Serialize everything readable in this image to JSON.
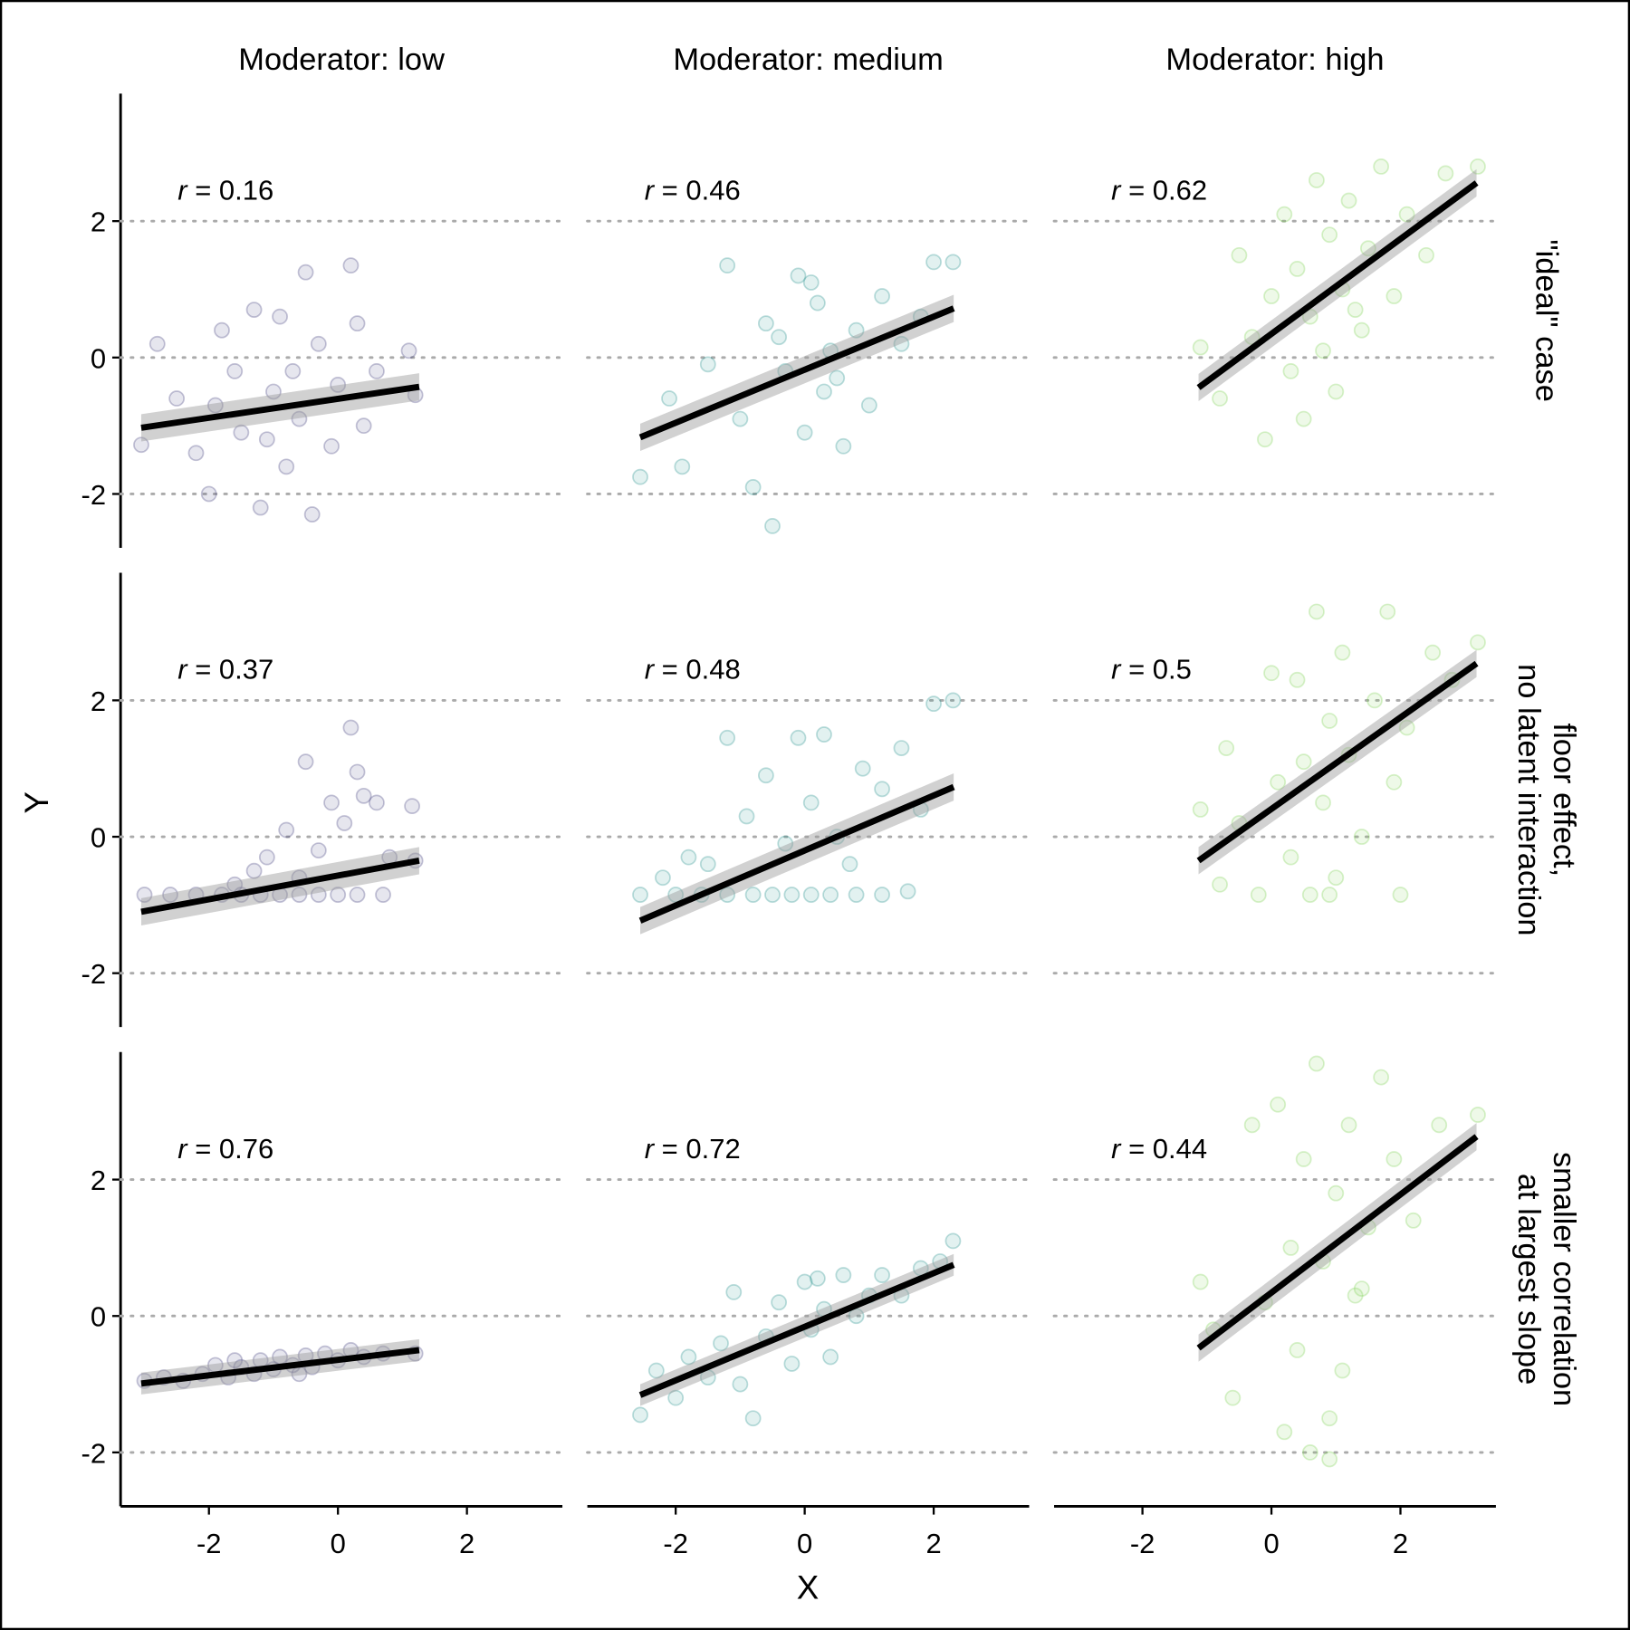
{
  "chart_data": {
    "type": "scatter",
    "columns": [
      "Moderator: low",
      "Moderator: medium",
      "Moderator: high"
    ],
    "rows": [
      [
        "\"ideal\" case"
      ],
      [
        "floor effect,",
        "no latent interaction"
      ],
      [
        "smaller correlation",
        "at largest slope"
      ]
    ],
    "colors": [
      "#3f3a7a",
      "#21908c",
      "#7ad151"
    ],
    "xlabel": "X",
    "ylabel": "Y",
    "xlim": [
      -3.37,
      3.48
    ],
    "ylim": [
      -2.79,
      3.87
    ],
    "xticks": [
      -2,
      0,
      2
    ],
    "yticks": [
      -2,
      0,
      2
    ],
    "grid": true,
    "panels": [
      {
        "annotation": "r = 0.16",
        "fit_x": [
          -3.05,
          1.26
        ],
        "fit_y": [
          -1.03,
          -0.43
        ],
        "band_lower": [
          -1.23,
          -0.63
        ],
        "band_upper": [
          -0.83,
          -0.23
        ],
        "points": [
          [
            -3.05,
            -1.28
          ],
          [
            -2.8,
            0.2
          ],
          [
            -2.5,
            -0.6
          ],
          [
            -2.2,
            -1.4
          ],
          [
            -2.0,
            -2.0
          ],
          [
            -1.8,
            0.4
          ],
          [
            -1.6,
            -0.2
          ],
          [
            -1.5,
            -1.1
          ],
          [
            -1.3,
            0.7
          ],
          [
            -1.2,
            -2.2
          ],
          [
            -1.0,
            -0.5
          ],
          [
            -0.9,
            0.6
          ],
          [
            -0.8,
            -1.6
          ],
          [
            -0.6,
            -0.9
          ],
          [
            -0.5,
            1.25
          ],
          [
            -0.4,
            -2.3
          ],
          [
            -0.3,
            0.2
          ],
          [
            -0.1,
            -1.3
          ],
          [
            0.0,
            -0.4
          ],
          [
            0.2,
            1.35
          ],
          [
            0.3,
            0.5
          ],
          [
            0.4,
            -1.0
          ],
          [
            0.6,
            -0.2
          ],
          [
            1.1,
            0.1
          ],
          [
            1.2,
            -0.55
          ],
          [
            -1.1,
            -1.2
          ],
          [
            -0.7,
            -0.2
          ],
          [
            -1.9,
            -0.7
          ]
        ]
      },
      {
        "annotation": "r = 0.46",
        "fit_x": [
          -2.55,
          2.31
        ],
        "fit_y": [
          -1.17,
          0.72
        ],
        "band_lower": [
          -1.37,
          0.52
        ],
        "band_upper": [
          -0.97,
          0.92
        ],
        "points": [
          [
            -2.55,
            -1.75
          ],
          [
            -2.1,
            -0.6
          ],
          [
            -1.9,
            -1.6
          ],
          [
            -1.5,
            -0.1
          ],
          [
            -1.2,
            1.35
          ],
          [
            -1.0,
            -0.9
          ],
          [
            -0.8,
            -1.9
          ],
          [
            -0.6,
            0.5
          ],
          [
            -0.5,
            -2.47
          ],
          [
            -0.3,
            -0.2
          ],
          [
            -0.1,
            1.2
          ],
          [
            0.0,
            -1.1
          ],
          [
            0.2,
            0.8
          ],
          [
            0.3,
            -0.5
          ],
          [
            0.4,
            0.1
          ],
          [
            0.6,
            -1.3
          ],
          [
            0.8,
            0.4
          ],
          [
            1.0,
            -0.7
          ],
          [
            1.2,
            0.9
          ],
          [
            1.5,
            0.2
          ],
          [
            1.8,
            0.6
          ],
          [
            2.0,
            1.4
          ],
          [
            2.3,
            1.4
          ],
          [
            0.1,
            1.1
          ],
          [
            -0.4,
            0.3
          ],
          [
            0.5,
            -0.3
          ]
        ]
      },
      {
        "annotation": "r = 0.62",
        "fit_x": [
          -1.13,
          3.18
        ],
        "fit_y": [
          -0.44,
          2.56
        ],
        "band_lower": [
          -0.64,
          2.36
        ],
        "band_upper": [
          -0.24,
          2.76
        ],
        "points": [
          [
            -1.1,
            0.15
          ],
          [
            -0.8,
            -0.6
          ],
          [
            -0.5,
            1.5
          ],
          [
            -0.3,
            0.3
          ],
          [
            -0.1,
            -1.2
          ],
          [
            0.0,
            0.9
          ],
          [
            0.2,
            2.1
          ],
          [
            0.3,
            -0.2
          ],
          [
            0.4,
            1.3
          ],
          [
            0.5,
            -0.9
          ],
          [
            0.6,
            0.6
          ],
          [
            0.7,
            2.6
          ],
          [
            0.8,
            0.1
          ],
          [
            0.9,
            1.8
          ],
          [
            1.0,
            -0.5
          ],
          [
            1.1,
            1.0
          ],
          [
            1.2,
            2.3
          ],
          [
            1.4,
            0.4
          ],
          [
            1.5,
            1.6
          ],
          [
            1.7,
            2.8
          ],
          [
            1.9,
            0.9
          ],
          [
            2.1,
            2.1
          ],
          [
            2.4,
            1.5
          ],
          [
            2.7,
            2.7
          ],
          [
            3.2,
            2.8
          ],
          [
            1.3,
            0.7
          ]
        ]
      },
      {
        "annotation": "r = 0.37",
        "fit_x": [
          -3.05,
          1.26
        ],
        "fit_y": [
          -1.1,
          -0.35
        ],
        "band_lower": [
          -1.3,
          -0.55
        ],
        "band_upper": [
          -0.9,
          -0.15
        ],
        "points": [
          [
            -3.0,
            -0.85
          ],
          [
            -2.6,
            -0.85
          ],
          [
            -2.2,
            -0.85
          ],
          [
            -1.8,
            -0.85
          ],
          [
            -1.5,
            -0.85
          ],
          [
            -1.2,
            -0.85
          ],
          [
            -0.9,
            -0.85
          ],
          [
            -0.6,
            -0.85
          ],
          [
            -0.3,
            -0.85
          ],
          [
            0.0,
            -0.85
          ],
          [
            0.3,
            -0.85
          ],
          [
            0.7,
            -0.85
          ],
          [
            -1.6,
            -0.7
          ],
          [
            -1.3,
            -0.5
          ],
          [
            -1.1,
            -0.3
          ],
          [
            -0.8,
            0.1
          ],
          [
            -0.6,
            -0.6
          ],
          [
            -0.5,
            1.1
          ],
          [
            -0.3,
            -0.2
          ],
          [
            -0.1,
            0.5
          ],
          [
            0.1,
            0.2
          ],
          [
            0.2,
            1.6
          ],
          [
            0.3,
            0.95
          ],
          [
            0.4,
            0.6
          ],
          [
            0.6,
            0.5
          ],
          [
            0.8,
            -0.3
          ],
          [
            1.15,
            0.45
          ],
          [
            1.2,
            -0.35
          ]
        ]
      },
      {
        "annotation": "r = 0.48",
        "fit_x": [
          -2.55,
          2.31
        ],
        "fit_y": [
          -1.23,
          0.73
        ],
        "band_lower": [
          -1.43,
          0.53
        ],
        "band_upper": [
          -1.03,
          0.93
        ],
        "points": [
          [
            -2.55,
            -0.85
          ],
          [
            -2.0,
            -0.85
          ],
          [
            -1.6,
            -0.85
          ],
          [
            -1.2,
            -0.85
          ],
          [
            -0.8,
            -0.85
          ],
          [
            -0.5,
            -0.85
          ],
          [
            -0.2,
            -0.85
          ],
          [
            0.1,
            -0.85
          ],
          [
            0.4,
            -0.85
          ],
          [
            0.8,
            -0.85
          ],
          [
            1.2,
            -0.85
          ],
          [
            1.6,
            -0.8
          ],
          [
            -2.2,
            -0.6
          ],
          [
            -1.8,
            -0.3
          ],
          [
            -1.5,
            -0.4
          ],
          [
            -1.2,
            1.45
          ],
          [
            -0.9,
            0.3
          ],
          [
            -0.6,
            0.9
          ],
          [
            -0.3,
            -0.1
          ],
          [
            -0.1,
            1.45
          ],
          [
            0.1,
            0.5
          ],
          [
            0.3,
            1.5
          ],
          [
            0.5,
            0.0
          ],
          [
            0.7,
            -0.4
          ],
          [
            0.9,
            1.0
          ],
          [
            1.2,
            0.7
          ],
          [
            1.5,
            1.3
          ],
          [
            1.8,
            0.4
          ],
          [
            2.0,
            1.95
          ],
          [
            2.3,
            2.0
          ]
        ]
      },
      {
        "annotation": "r = 0.5",
        "fit_x": [
          -1.13,
          3.18
        ],
        "fit_y": [
          -0.35,
          2.54
        ],
        "band_lower": [
          -0.55,
          2.34
        ],
        "band_upper": [
          -0.15,
          2.74
        ],
        "points": [
          [
            -1.1,
            0.4
          ],
          [
            -0.8,
            -0.7
          ],
          [
            -0.7,
            1.3
          ],
          [
            -0.5,
            0.2
          ],
          [
            -0.2,
            -0.85
          ],
          [
            0.0,
            2.4
          ],
          [
            0.1,
            0.8
          ],
          [
            0.3,
            -0.3
          ],
          [
            0.4,
            2.3
          ],
          [
            0.5,
            1.1
          ],
          [
            0.6,
            -0.85
          ],
          [
            0.7,
            3.3
          ],
          [
            0.8,
            0.5
          ],
          [
            0.9,
            1.7
          ],
          [
            1.0,
            -0.6
          ],
          [
            1.1,
            2.7
          ],
          [
            1.2,
            1.2
          ],
          [
            1.4,
            0.0
          ],
          [
            1.6,
            2.0
          ],
          [
            1.8,
            3.3
          ],
          [
            1.9,
            0.8
          ],
          [
            2.1,
            1.6
          ],
          [
            2.0,
            -0.85
          ],
          [
            2.5,
            2.7
          ],
          [
            2.8,
            2.3
          ],
          [
            3.2,
            2.85
          ],
          [
            0.9,
            -0.85
          ]
        ]
      },
      {
        "annotation": "r = 0.76",
        "fit_x": [
          -3.05,
          1.26
        ],
        "fit_y": [
          -0.99,
          -0.5
        ],
        "band_lower": [
          -1.15,
          -0.66
        ],
        "band_upper": [
          -0.83,
          -0.34
        ],
        "points": [
          [
            -3.0,
            -0.95
          ],
          [
            -2.7,
            -0.9
          ],
          [
            -2.4,
            -0.95
          ],
          [
            -2.1,
            -0.85
          ],
          [
            -1.9,
            -0.72
          ],
          [
            -1.7,
            -0.9
          ],
          [
            -1.5,
            -0.75
          ],
          [
            -1.3,
            -0.85
          ],
          [
            -1.2,
            -0.65
          ],
          [
            -1.0,
            -0.78
          ],
          [
            -0.9,
            -0.6
          ],
          [
            -0.7,
            -0.72
          ],
          [
            -0.5,
            -0.58
          ],
          [
            -0.4,
            -0.75
          ],
          [
            -0.2,
            -0.55
          ],
          [
            0.0,
            -0.65
          ],
          [
            0.2,
            -0.5
          ],
          [
            0.4,
            -0.6
          ],
          [
            0.7,
            -0.55
          ],
          [
            1.2,
            -0.55
          ],
          [
            -1.6,
            -0.65
          ],
          [
            -0.6,
            -0.85
          ]
        ]
      },
      {
        "annotation": "r = 0.72",
        "fit_x": [
          -2.55,
          2.31
        ],
        "fit_y": [
          -1.16,
          0.75
        ],
        "band_lower": [
          -1.32,
          0.59
        ],
        "band_upper": [
          -1.0,
          0.91
        ],
        "points": [
          [
            -2.55,
            -1.45
          ],
          [
            -2.3,
            -0.8
          ],
          [
            -2.0,
            -1.2
          ],
          [
            -1.8,
            -0.6
          ],
          [
            -1.5,
            -0.9
          ],
          [
            -1.3,
            -0.4
          ],
          [
            -1.0,
            -1.0
          ],
          [
            -0.8,
            -1.5
          ],
          [
            -0.6,
            -0.3
          ],
          [
            -0.4,
            0.2
          ],
          [
            -0.2,
            -0.7
          ],
          [
            0.0,
            0.5
          ],
          [
            0.1,
            -0.2
          ],
          [
            0.3,
            0.1
          ],
          [
            0.4,
            -0.6
          ],
          [
            0.6,
            0.6
          ],
          [
            0.8,
            0.0
          ],
          [
            1.0,
            0.3
          ],
          [
            1.2,
            0.6
          ],
          [
            1.5,
            0.3
          ],
          [
            1.8,
            0.7
          ],
          [
            2.1,
            0.8
          ],
          [
            2.3,
            1.1
          ],
          [
            -1.1,
            0.35
          ],
          [
            0.2,
            0.55
          ]
        ]
      },
      {
        "annotation": "r = 0.44",
        "fit_x": [
          -1.13,
          3.18
        ],
        "fit_y": [
          -0.47,
          2.63
        ],
        "band_lower": [
          -0.67,
          2.43
        ],
        "band_upper": [
          -0.27,
          2.83
        ],
        "points": [
          [
            -1.1,
            0.5
          ],
          [
            -0.9,
            -0.2
          ],
          [
            -0.6,
            -1.2
          ],
          [
            -0.3,
            2.8
          ],
          [
            -0.1,
            0.2
          ],
          [
            0.1,
            3.1
          ],
          [
            0.2,
            -1.7
          ],
          [
            0.3,
            1.0
          ],
          [
            0.4,
            -0.5
          ],
          [
            0.5,
            2.3
          ],
          [
            0.6,
            -2.0
          ],
          [
            0.7,
            3.7
          ],
          [
            0.8,
            0.8
          ],
          [
            0.9,
            -1.5
          ],
          [
            1.0,
            1.8
          ],
          [
            1.1,
            -0.8
          ],
          [
            1.2,
            2.8
          ],
          [
            1.4,
            0.4
          ],
          [
            1.5,
            1.3
          ],
          [
            1.7,
            3.5
          ],
          [
            1.9,
            2.3
          ],
          [
            2.2,
            1.4
          ],
          [
            2.6,
            2.8
          ],
          [
            3.2,
            2.95
          ],
          [
            0.9,
            -2.1
          ],
          [
            1.3,
            0.3
          ]
        ]
      }
    ]
  }
}
